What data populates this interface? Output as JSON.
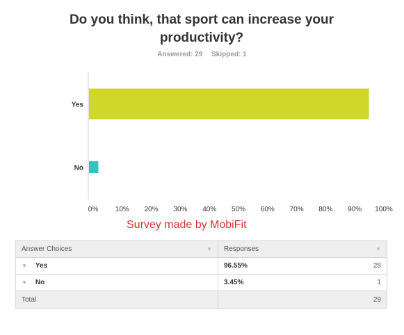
{
  "question": {
    "title_line1": "Do you think, that sport can increase your",
    "title_line2": "productivity?",
    "answered": "Answered: 29",
    "skipped": "Skipped: 1"
  },
  "chart_data": {
    "type": "bar",
    "orientation": "horizontal",
    "categories": [
      "Yes",
      "No"
    ],
    "values": [
      96.55,
      3.45
    ],
    "colors": [
      "#d0d62a",
      "#36c2bf"
    ],
    "xlim": [
      0,
      100
    ],
    "xticks": [
      "0%",
      "10%",
      "20%",
      "30%",
      "40%",
      "50%",
      "60%",
      "70%",
      "80%",
      "90%",
      "100%"
    ],
    "grid": false
  },
  "credit": "Survey made by MobiFit",
  "table": {
    "headers": [
      "Answer Choices",
      "Responses"
    ],
    "rows": [
      {
        "choice": "Yes",
        "percent": "96.55%",
        "count": "28"
      },
      {
        "choice": "No",
        "percent": "3.45%",
        "count": "1"
      }
    ],
    "total_label": "Total",
    "total_value": "29"
  }
}
